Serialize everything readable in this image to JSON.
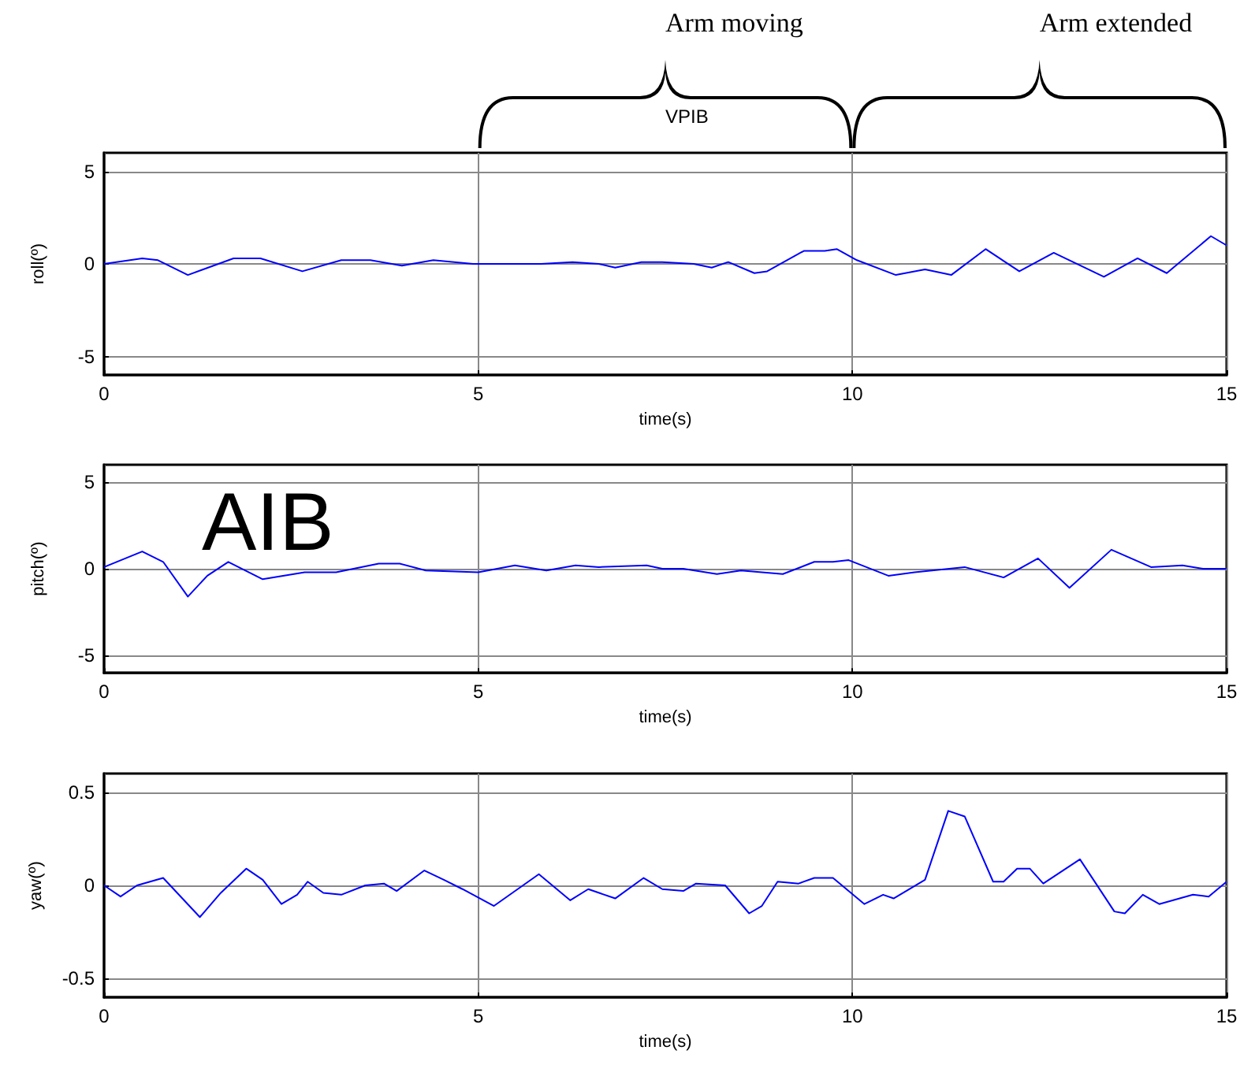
{
  "chart_data": [
    {
      "type": "line",
      "xlabel": "time(s)",
      "ylabel": "roll(º)",
      "xlim": [
        0,
        15
      ],
      "xticks": [
        0,
        5,
        10,
        15
      ],
      "ylim": [
        -6,
        6
      ],
      "yticks": [
        -5,
        0,
        5
      ],
      "grid": true,
      "marker": "none",
      "annotations": [
        "Arm moving",
        "Arm extended",
        "VPIB"
      ],
      "series": [
        {
          "color": "#0000ff",
          "x": [
            0,
            0.51,
            0.72,
            1.12,
            1.73,
            2.09,
            2.65,
            3.17,
            3.56,
            3.98,
            4.4,
            4.93,
            5.84,
            6.26,
            6.61,
            6.83,
            7.18,
            7.46,
            7.88,
            8.12,
            8.34,
            8.69,
            8.86,
            9.35,
            9.63,
            9.79,
            10.06,
            10.58,
            10.97,
            11.32,
            11.78,
            12.23,
            12.69,
            13.36,
            13.81,
            14.2,
            14.79,
            15
          ],
          "values": [
            0,
            0.3,
            0.2,
            -0.6,
            0.3,
            0.3,
            -0.4,
            0.2,
            0.2,
            -0.1,
            0.2,
            0,
            0,
            0.1,
            0,
            -0.2,
            0.1,
            0.1,
            0,
            -0.2,
            0.1,
            -0.5,
            -0.4,
            0.7,
            0.7,
            0.8,
            0.2,
            -0.6,
            -0.3,
            -0.6,
            0.8,
            -0.4,
            0.6,
            -0.7,
            0.3,
            -0.5,
            1.5,
            1
          ]
        }
      ]
    },
    {
      "type": "line",
      "xlabel": "time(s)",
      "ylabel": "pitch(º)",
      "xlim": [
        0,
        15
      ],
      "xticks": [
        0,
        5,
        10,
        15
      ],
      "ylim": [
        -6,
        6
      ],
      "yticks": [
        -5,
        0,
        5
      ],
      "grid": true,
      "marker": "none",
      "annotations": [
        "AIB"
      ],
      "series": [
        {
          "color": "#0000ff",
          "x": [
            0,
            0.51,
            0.79,
            1.12,
            1.38,
            1.66,
            2.12,
            2.68,
            3.1,
            3.67,
            3.95,
            4.3,
            5,
            5.49,
            5.91,
            6.3,
            6.61,
            7.25,
            7.46,
            7.74,
            8.19,
            8.51,
            9.07,
            9.49,
            9.74,
            9.95,
            10.48,
            10.83,
            11.5,
            12.02,
            12.48,
            12.9,
            13.46,
            13.99,
            14.41,
            14.69,
            15
          ],
          "values": [
            0.1,
            1,
            0.4,
            -1.6,
            -0.4,
            0.4,
            -0.6,
            -0.2,
            -0.2,
            0.3,
            0.3,
            -0.1,
            -0.2,
            0.2,
            -0.1,
            0.2,
            0.1,
            0.2,
            0,
            0,
            -0.3,
            -0.1,
            -0.3,
            0.4,
            0.4,
            0.5,
            -0.4,
            -0.2,
            0.1,
            -0.5,
            0.6,
            -1.1,
            1.1,
            0.1,
            0.2,
            0,
            0
          ]
        }
      ]
    },
    {
      "type": "line",
      "xlabel": "time(s)",
      "ylabel": "yaw(º)",
      "xlim": [
        0,
        15
      ],
      "xticks": [
        0,
        5,
        10,
        15
      ],
      "ylim": [
        -0.6,
        0.6
      ],
      "yticks": [
        -0.5,
        0,
        0.5
      ],
      "grid": true,
      "marker": "none",
      "series": [
        {
          "color": "#0000ff",
          "x": [
            0,
            0.22,
            0.44,
            0.79,
            1.28,
            1.56,
            1.9,
            2.12,
            2.37,
            2.58,
            2.72,
            2.93,
            3.17,
            3.49,
            3.74,
            3.91,
            4.28,
            4.54,
            4.79,
            5.21,
            5.81,
            6.23,
            6.47,
            6.83,
            7.21,
            7.46,
            7.74,
            7.91,
            8.3,
            8.62,
            8.79,
            9,
            9.28,
            9.49,
            9.74,
            10.16,
            10.41,
            10.55,
            10.97,
            11.28,
            11.5,
            11.88,
            12.02,
            12.2,
            12.37,
            12.55,
            13.04,
            13.5,
            13.64,
            13.88,
            14.1,
            14.55,
            14.76,
            15
          ],
          "values": [
            0,
            -0.06,
            0,
            0.04,
            -0.17,
            -0.04,
            0.09,
            0.03,
            -0.1,
            -0.05,
            0.02,
            -0.04,
            -0.05,
            0,
            0.01,
            -0.03,
            0.08,
            0.03,
            -0.02,
            -0.11,
            0.06,
            -0.08,
            -0.02,
            -0.07,
            0.04,
            -0.02,
            -0.03,
            0.01,
            0,
            -0.15,
            -0.11,
            0.02,
            0.01,
            0.04,
            0.04,
            -0.1,
            -0.05,
            -0.07,
            0.03,
            0.4,
            0.37,
            0.02,
            0.02,
            0.09,
            0.09,
            0.01,
            0.14,
            -0.14,
            -0.15,
            -0.05,
            -0.1,
            -0.05,
            -0.06,
            0.02
          ]
        }
      ]
    }
  ]
}
